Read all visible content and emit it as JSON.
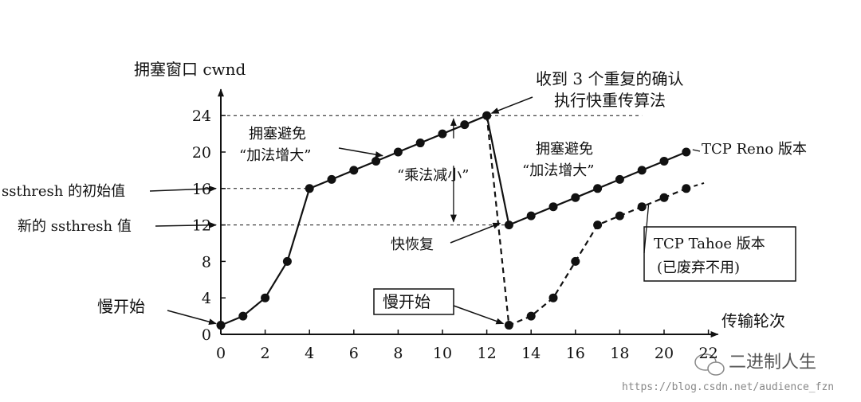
{
  "chart_data": {
    "type": "line",
    "ylabel": "拥塞窗口 cwnd",
    "xlabel": "传输轮次",
    "xlim": [
      0,
      22
    ],
    "ylim": [
      0,
      26
    ],
    "x_ticks": [
      0,
      2,
      4,
      6,
      8,
      10,
      12,
      14,
      16,
      18,
      20,
      22
    ],
    "x_tick_labels": [
      "0",
      "2",
      "4",
      "6",
      "8",
      "10",
      "12",
      "14",
      "16",
      "18",
      "20",
      "22"
    ],
    "y_ticks": [
      0,
      4,
      8,
      12,
      16,
      20,
      24
    ],
    "y_tick_labels": [
      "0",
      "4",
      "8",
      "12",
      "16",
      "20",
      "24"
    ],
    "series": [
      {
        "name": "TCP Reno 版本",
        "style": "solid",
        "x": [
          0,
          1,
          2,
          3,
          4,
          5,
          6,
          7,
          8,
          9,
          10,
          11,
          12,
          13,
          14,
          15,
          16,
          17,
          18,
          19,
          20,
          21
        ],
        "y": [
          1,
          2,
          4,
          8,
          16,
          17,
          18,
          19,
          20,
          21,
          22,
          23,
          24,
          12,
          13,
          14,
          15,
          16,
          17,
          18,
          19,
          20
        ]
      },
      {
        "name": "TCP Tahoe 版本",
        "style": "dashed",
        "x": [
          12,
          13,
          14,
          15,
          16,
          17,
          18,
          19,
          20,
          21
        ],
        "y": [
          24,
          1,
          2,
          4,
          8,
          12,
          13,
          14,
          15,
          16
        ]
      }
    ],
    "annotations": {
      "ssthresh_initial": "ssthresh 的初始值",
      "ssthresh_new": "新的 ssthresh 值",
      "slow_start_left": "慢开始",
      "slow_start_right": "慢开始",
      "congestion_avoid_1": "拥塞避免",
      "additive_inc_1": "“加法增大”",
      "congestion_avoid_2": "拥塞避免",
      "additive_inc_2": "“加法增大”",
      "mult_dec": "“乘法减小”",
      "dup_ack_line1": "收到 3 个重复的确认",
      "dup_ack_line2": "执行快重传算法",
      "fast_recovery": "快恢复",
      "reno_label": "TCP Reno 版本",
      "tahoe_label_1": "TCP Tahoe 版本",
      "tahoe_label_2": "(已废弃不用)"
    }
  },
  "watermark": {
    "text": "二进制人生",
    "url": "https://blog.csdn.net/audience_fzn"
  }
}
